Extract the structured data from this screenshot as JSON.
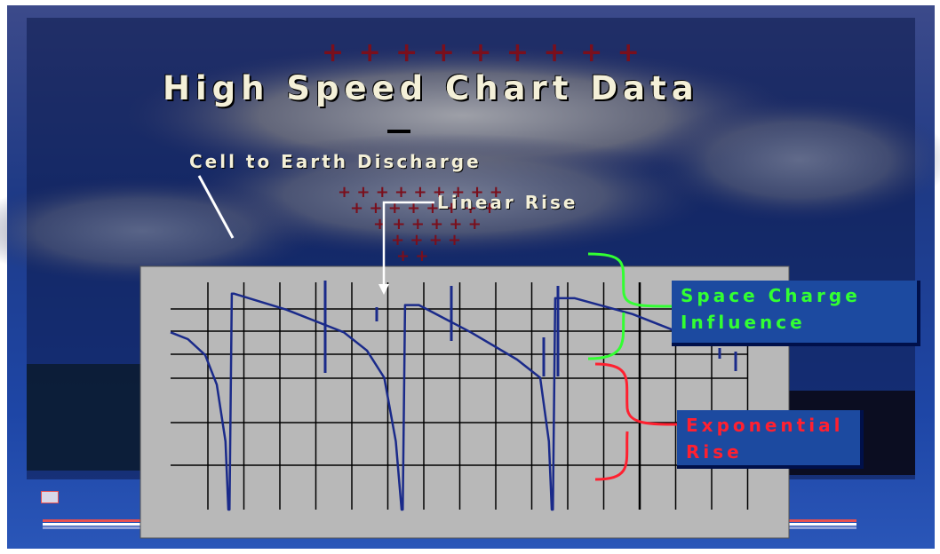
{
  "title": "High Speed Chart Data",
  "plus_signs": "+ + + + + + + + +",
  "labels": {
    "cell_to_earth": "Cell to Earth Discharge",
    "linear_rise": "Linear Rise"
  },
  "callouts": {
    "space_charge": [
      "Space Charge",
      "Influence"
    ],
    "exponential": [
      "Exponential",
      "Rise"
    ]
  },
  "colors": {
    "background": "#16306e",
    "chart_panel": "#b8b8b8",
    "grid": "#000000",
    "trace": "#1a2a8a",
    "space_charge_accent": "#32ff32",
    "exponential_accent": "#ff2030",
    "title_text": "#f4f0d8"
  },
  "chart_data": {
    "type": "line",
    "title": "",
    "xlabel": "",
    "ylabel": "",
    "grid": true,
    "description_units": "arbitrary",
    "xlim": [
      0,
      100
    ],
    "ylim": [
      0,
      100
    ],
    "series": [
      {
        "values_xy": [
          [
            0,
            78
          ],
          [
            3,
            75
          ],
          [
            6,
            68
          ],
          [
            8,
            55
          ],
          [
            9.5,
            30
          ],
          [
            10,
            0
          ],
          [
            10.2,
            0
          ],
          [
            10.6,
            95
          ],
          [
            11,
            95
          ],
          [
            20,
            88
          ],
          [
            30,
            78
          ],
          [
            34,
            70
          ],
          [
            37,
            58
          ],
          [
            39,
            30
          ],
          [
            40,
            0
          ],
          [
            40.2,
            0
          ],
          [
            40.6,
            90
          ],
          [
            43,
            90
          ],
          [
            52,
            78
          ],
          [
            60,
            66
          ],
          [
            64,
            58
          ],
          [
            65.5,
            30
          ],
          [
            66,
            0
          ],
          [
            66.2,
            0
          ],
          [
            66.6,
            93
          ],
          [
            70,
            93
          ],
          [
            80,
            86
          ],
          [
            88,
            78
          ]
        ]
      }
    ]
  }
}
